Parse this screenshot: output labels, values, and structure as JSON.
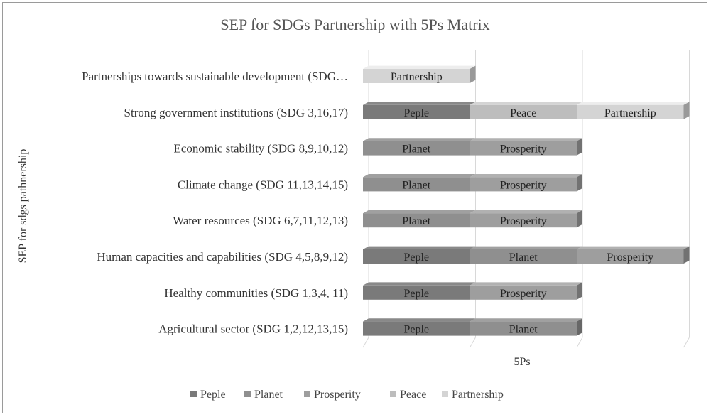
{
  "chart_data": {
    "type": "bar",
    "orientation": "horizontal",
    "stacked": true,
    "three_d": true,
    "title": "SEP for SDGs Partnership with 5Ps Matrix",
    "xlabel": "5Ps",
    "ylabel": "SEP for sdgs pathnership",
    "xlim": [
      0,
      3
    ],
    "grid": true,
    "legend_position": "bottom",
    "legend": [
      "Peple",
      "Planet",
      "Prosperity",
      "Peace",
      "Partnership"
    ],
    "colors": {
      "Peple": "#7a7a7a",
      "Planet": "#8f8f8f",
      "Prosperity": "#9e9e9e",
      "Peace": "#bdbdbd",
      "Partnership": "#d4d4d4"
    },
    "rows": [
      {
        "category": "Partnerships towards sustainable development (SDG…",
        "segments": [
          {
            "name": "Partnership",
            "value": 1,
            "label": "Partnership"
          }
        ]
      },
      {
        "category": "Strong government institutions (SDG 3,16,17)",
        "segments": [
          {
            "name": "Peple",
            "value": 1,
            "label": "Peple"
          },
          {
            "name": "Peace",
            "value": 1,
            "label": "Peace"
          },
          {
            "name": "Partnership",
            "value": 1,
            "label": "Partnership"
          }
        ]
      },
      {
        "category": "Economic stability (SDG 8,9,10,12)",
        "segments": [
          {
            "name": "Planet",
            "value": 1,
            "label": "Planet"
          },
          {
            "name": "Prosperity",
            "value": 1,
            "label": "Prosperity"
          }
        ]
      },
      {
        "category": "Climate change (SDG 11,13,14,15)",
        "segments": [
          {
            "name": "Planet",
            "value": 1,
            "label": "Planet"
          },
          {
            "name": "Prosperity",
            "value": 1,
            "label": "Prosperity"
          }
        ]
      },
      {
        "category": "Water resources (SDG 6,7,11,12,13)",
        "segments": [
          {
            "name": "Planet",
            "value": 1,
            "label": "Planet"
          },
          {
            "name": "Prosperity",
            "value": 1,
            "label": "Prosperity"
          }
        ]
      },
      {
        "category": "Human capacities and capabilities (SDG 4,5,8,9,12)",
        "segments": [
          {
            "name": "Peple",
            "value": 1,
            "label": "Peple"
          },
          {
            "name": "Planet",
            "value": 1,
            "label": "Planet"
          },
          {
            "name": "Prosperity",
            "value": 1,
            "label": "Prosperity"
          }
        ]
      },
      {
        "category": "Healthy communities (SDG 1,3,4, 11)",
        "segments": [
          {
            "name": "Peple",
            "value": 1,
            "label": "Peple"
          },
          {
            "name": "Prosperity",
            "value": 1,
            "label": "Prosperity"
          }
        ]
      },
      {
        "category": "Agricultural sector (SDG 1,2,12,13,15)",
        "segments": [
          {
            "name": "Peple",
            "value": 1,
            "label": "Peple"
          },
          {
            "name": "Planet",
            "value": 1,
            "label": "Planet"
          }
        ]
      }
    ]
  }
}
